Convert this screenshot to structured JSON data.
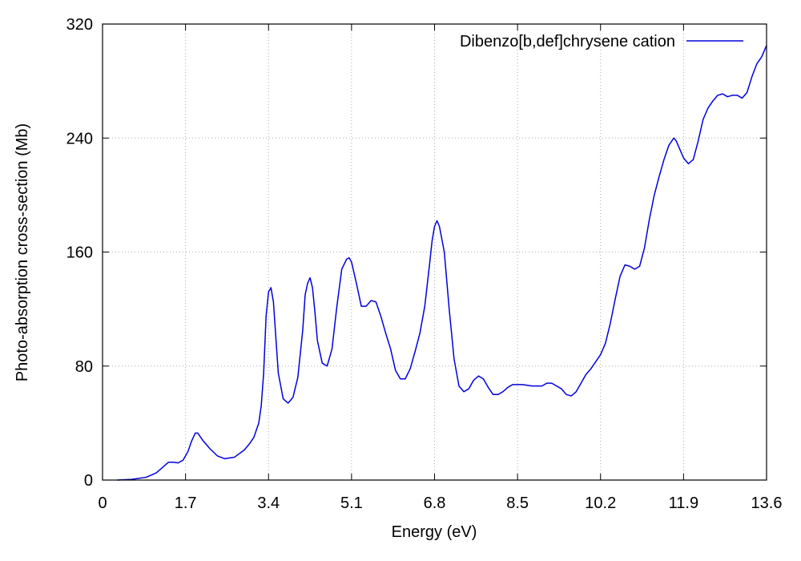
{
  "chart_data": {
    "type": "line",
    "title": "",
    "xlabel": "Energy (eV)",
    "ylabel": "Photo-absorption cross-section (Mb)",
    "xlim": [
      0,
      13.6
    ],
    "ylim": [
      0,
      320
    ],
    "xticks": [
      0,
      1.7,
      3.4,
      5.1,
      6.8,
      8.5,
      10.2,
      11.9,
      13.6
    ],
    "xtick_labels": [
      "0",
      "1.7",
      "3.4",
      "5.1",
      "6.8",
      "8.5",
      "10.2",
      "11.9",
      "13.6"
    ],
    "yticks": [
      0,
      80,
      160,
      240,
      320
    ],
    "ytick_labels": [
      "0",
      "80",
      "160",
      "240",
      "320"
    ],
    "grid": true,
    "legend_position": "top-right",
    "colors": {
      "series": "#0000dd",
      "axis": "#000000",
      "grid": "#aaaaaa"
    },
    "series": [
      {
        "name": "Dibenzo[b,def]chrysene cation",
        "x": [
          0.3,
          0.6,
          0.9,
          1.1,
          1.2,
          1.3,
          1.35,
          1.45,
          1.55,
          1.65,
          1.75,
          1.82,
          1.9,
          1.95,
          2.05,
          2.2,
          2.35,
          2.5,
          2.7,
          2.9,
          3.0,
          3.1,
          3.2,
          3.25,
          3.3,
          3.35,
          3.4,
          3.45,
          3.5,
          3.55,
          3.6,
          3.7,
          3.8,
          3.9,
          4.0,
          4.1,
          4.15,
          4.2,
          4.25,
          4.3,
          4.35,
          4.4,
          4.5,
          4.6,
          4.7,
          4.8,
          4.9,
          5.0,
          5.05,
          5.1,
          5.2,
          5.3,
          5.4,
          5.5,
          5.6,
          5.7,
          5.8,
          5.9,
          6.0,
          6.1,
          6.2,
          6.3,
          6.4,
          6.5,
          6.6,
          6.7,
          6.75,
          6.8,
          6.85,
          6.9,
          7.0,
          7.1,
          7.2,
          7.3,
          7.4,
          7.5,
          7.6,
          7.7,
          7.8,
          7.9,
          8.0,
          8.1,
          8.2,
          8.3,
          8.4,
          8.5,
          8.6,
          8.8,
          9.0,
          9.1,
          9.2,
          9.3,
          9.4,
          9.5,
          9.6,
          9.7,
          9.8,
          9.9,
          10.0,
          10.1,
          10.2,
          10.3,
          10.4,
          10.5,
          10.6,
          10.7,
          10.8,
          10.9,
          11.0,
          11.1,
          11.2,
          11.3,
          11.4,
          11.5,
          11.6,
          11.7,
          11.75,
          11.8,
          11.9,
          12.0,
          12.1,
          12.2,
          12.3,
          12.4,
          12.5,
          12.6,
          12.7,
          12.8,
          12.9,
          13.0,
          13.1,
          13.2,
          13.3,
          13.4,
          13.5,
          13.6
        ],
        "y": [
          0,
          0.5,
          2,
          5,
          8,
          11,
          12.5,
          12.5,
          12,
          14,
          20,
          27,
          33,
          33,
          28,
          22,
          17,
          15,
          16,
          21,
          25,
          30,
          40,
          52,
          75,
          115,
          132,
          135,
          125,
          100,
          75,
          57,
          54,
          58,
          72,
          105,
          130,
          138,
          142,
          135,
          118,
          98,
          82,
          80,
          92,
          122,
          148,
          155,
          156,
          153,
          138,
          122,
          122,
          126,
          125,
          115,
          103,
          92,
          77,
          71,
          71,
          78,
          90,
          103,
          122,
          152,
          168,
          178,
          182,
          178,
          160,
          120,
          85,
          66,
          62,
          64,
          70,
          73,
          71,
          65,
          60,
          60,
          62,
          65,
          67,
          67,
          67,
          66,
          66,
          68,
          68,
          66,
          64,
          60,
          59,
          62,
          68,
          74,
          78,
          83,
          88,
          96,
          110,
          127,
          143,
          151,
          150,
          148,
          150,
          163,
          183,
          200,
          213,
          225,
          235,
          240,
          238,
          234,
          226,
          222,
          225,
          238,
          253,
          261,
          266,
          270,
          271,
          269,
          270,
          270,
          268,
          272,
          283,
          292,
          297,
          305
        ]
      }
    ]
  }
}
